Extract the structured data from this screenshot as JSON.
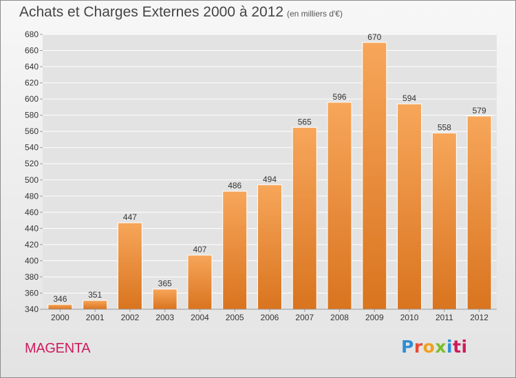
{
  "header": {
    "title": "Achats et Charges Externes 2000 à 2012",
    "subtitle": "(en milliers d'€)"
  },
  "footer": {
    "region": "MAGENTA",
    "logo_letters": [
      "P",
      "r",
      "o",
      "x",
      "i",
      "ti"
    ]
  },
  "colors": {
    "bar_top": "#f7a65a",
    "bar_bottom": "#d9741f",
    "region_text": "#d01a5c",
    "grid": "#ffffff"
  },
  "chart_data": {
    "type": "bar",
    "categories": [
      "2000",
      "2001",
      "2002",
      "2003",
      "2004",
      "2005",
      "2006",
      "2007",
      "2008",
      "2009",
      "2010",
      "2011",
      "2012"
    ],
    "values": [
      346,
      351,
      447,
      365,
      407,
      486,
      494,
      565,
      596,
      670,
      594,
      558,
      579
    ],
    "data_labels": [
      "346",
      "351",
      "447",
      "365",
      "407",
      "486",
      "494",
      "565",
      "596",
      "670",
      "594",
      "558",
      "579"
    ],
    "title": "Achats et Charges Externes 2000 à 2012",
    "subtitle": "(en milliers d'€)",
    "xlabel": "",
    "ylabel": "",
    "ylim": [
      340,
      680
    ],
    "yticks": [
      340,
      360,
      380,
      400,
      420,
      440,
      460,
      480,
      500,
      520,
      540,
      560,
      580,
      600,
      620,
      640,
      660,
      680
    ],
    "grid": true,
    "legend": "none"
  }
}
